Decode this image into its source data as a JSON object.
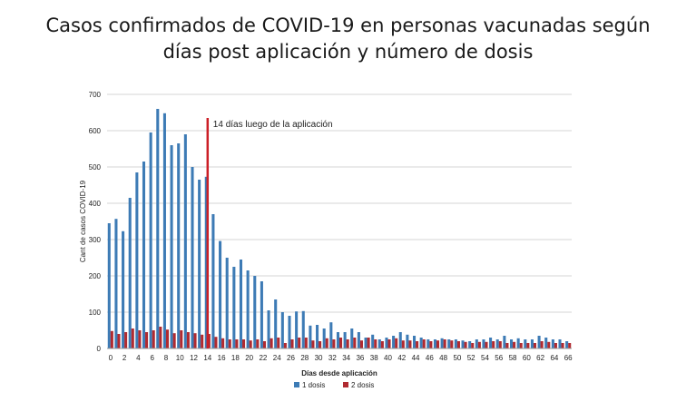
{
  "title": {
    "line1": "Casos confirmados de COVID-19 en personas vacunadas según",
    "line2": "días post aplicación y número de dosis"
  },
  "chart_data": {
    "type": "bar",
    "title": "Casos confirmados de COVID-19 en personas vacunadas según días post aplicación y número de dosis",
    "xlabel": "Días desde aplicación",
    "ylabel": "Cant de casos COVID-19",
    "ylim": [
      0,
      700
    ],
    "yticks": [
      0,
      100,
      200,
      300,
      400,
      500,
      600,
      700
    ],
    "grid": true,
    "legend_position": "bottom",
    "x": [
      0,
      1,
      2,
      3,
      4,
      5,
      6,
      7,
      8,
      9,
      10,
      11,
      12,
      13,
      14,
      15,
      16,
      17,
      18,
      19,
      20,
      21,
      22,
      23,
      24,
      25,
      26,
      27,
      28,
      29,
      30,
      31,
      32,
      33,
      34,
      35,
      36,
      37,
      38,
      39,
      40,
      41,
      42,
      43,
      44,
      45,
      46,
      47,
      48,
      49,
      50,
      51,
      52,
      53,
      54,
      55,
      56,
      57,
      58,
      59,
      60,
      61,
      62,
      63,
      64,
      65,
      66
    ],
    "x_tick_labels": [
      "0",
      "2",
      "4",
      "6",
      "8",
      "10",
      "12",
      "14",
      "16",
      "18",
      "20",
      "22",
      "24",
      "26",
      "28",
      "30",
      "32",
      "34",
      "36",
      "38",
      "40",
      "42",
      "44",
      "46",
      "48",
      "50",
      "52",
      "54",
      "56",
      "58",
      "60",
      "62",
      "64",
      "66"
    ],
    "series": [
      {
        "name": "1 dosis",
        "color": "#3d7bb5",
        "values": [
          345,
          357,
          323,
          415,
          485,
          515,
          595,
          660,
          648,
          560,
          565,
          590,
          500,
          465,
          473,
          370,
          296,
          250,
          225,
          245,
          215,
          200,
          185,
          105,
          135,
          100,
          90,
          102,
          103,
          63,
          65,
          55,
          72,
          45,
          45,
          55,
          45,
          30,
          38,
          25,
          30,
          35,
          45,
          38,
          35,
          30,
          25,
          25,
          28,
          25,
          25,
          22,
          20,
          25,
          25,
          30,
          25,
          35,
          25,
          28,
          25,
          25,
          35,
          30,
          25,
          25,
          20
        ]
      },
      {
        "name": "2 dosis",
        "color": "#b02a30",
        "values": [
          48,
          40,
          45,
          55,
          50,
          45,
          50,
          60,
          52,
          42,
          50,
          45,
          42,
          38,
          40,
          32,
          28,
          25,
          25,
          25,
          22,
          25,
          20,
          28,
          30,
          15,
          25,
          30,
          30,
          22,
          20,
          28,
          25,
          30,
          25,
          30,
          22,
          30,
          25,
          20,
          25,
          28,
          22,
          22,
          20,
          25,
          20,
          22,
          25,
          22,
          20,
          18,
          15,
          18,
          18,
          20,
          20,
          15,
          18,
          15,
          15,
          15,
          20,
          18,
          15,
          15,
          15
        ]
      }
    ],
    "annotations": [
      {
        "text": "14 días luego de la aplicación",
        "x": 14.5,
        "color": "#cc1f27"
      }
    ]
  }
}
